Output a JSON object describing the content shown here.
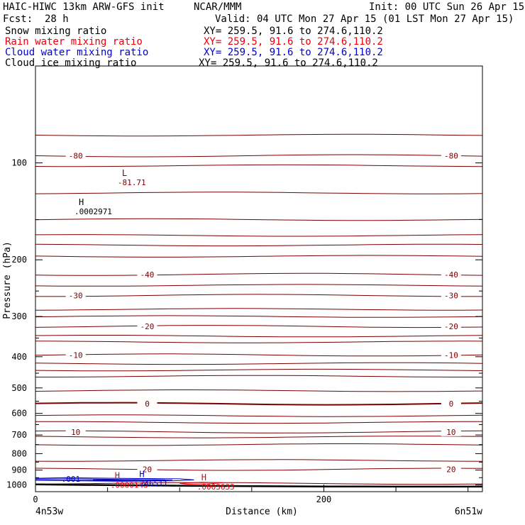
{
  "header": {
    "title": "HAIC-HIWC 13km ARW-GFS init",
    "org": "NCAR/MMM",
    "init": "Init: 00 UTC Sun 26 Apr 15",
    "fcst_label": "Fcst:",
    "fcst_value": "28 h",
    "valid": "Valid: 04 UTC Mon 27 Apr 15 (01 LST Mon 27 Apr 15)"
  },
  "fields": [
    {
      "name": "Snow mixing ratio",
      "xy": "XY= 259.5, 91.6 to 274.6,110.2",
      "color": "#000000"
    },
    {
      "name": "Rain water mixing ratio",
      "xy": "XY= 259.5, 91.6 to 274.6,110.2",
      "color": "#e8000b"
    },
    {
      "name": "Cloud water mixing ratio",
      "xy": "XY= 259.5, 91.6 to 274.6,110.2",
      "color": "#0000c8"
    },
    {
      "name": "Cloud ice mixing ratio",
      "xy": "XY= 259.5, 91.6 to 274.6,110.2",
      "color": "#000000"
    }
  ],
  "chart_data": {
    "type": "line",
    "xlabel": "Distance (km)",
    "ylabel": "Pressure (hPa)",
    "xlim": [
      0,
      310
    ],
    "ylim": [
      1050,
      50
    ],
    "y_scale": "log",
    "x_ticks": [
      0,
      200
    ],
    "x_minor_ticks": [
      50,
      100,
      150,
      250,
      300
    ],
    "y_ticks": [
      100,
      200,
      300,
      400,
      500,
      600,
      700,
      800,
      900,
      1000
    ],
    "x_end_labels": {
      "left": "4n53w",
      "right": "6n51w"
    },
    "temperature_color": "#7a0000",
    "temperature_isotherms": [
      {
        "label": "-80",
        "pressure": 95
      },
      {
        "label": "-40",
        "pressure": 222
      },
      {
        "label": "-30",
        "pressure": 258
      },
      {
        "label": "-20",
        "pressure": 322
      },
      {
        "label": "-10",
        "pressure": 395
      },
      {
        "label": "0",
        "pressure": 560,
        "bold": true
      },
      {
        "label": "10",
        "pressure": 685
      },
      {
        "label": "20",
        "pressure": 895
      }
    ],
    "extrema": [
      {
        "kind": "L",
        "value": "-81.71",
        "x": 60,
        "pressure": 112,
        "color": "#7a0000"
      },
      {
        "kind": "H",
        "value": ".0002971",
        "x": 30,
        "pressure": 138,
        "color": "#000000"
      },
      {
        "kind": "H",
        "value": ".0000145",
        "x": 55,
        "pressure": 975,
        "color": "#e8000b"
      },
      {
        "kind": "H",
        "value": ".246511",
        "x": 72,
        "pressure": 965,
        "color": "#0000c8"
      },
      {
        "kind": "H",
        "value": ".0003633",
        "x": 115,
        "pressure": 988,
        "color": "#e8000b"
      }
    ],
    "cloud_water_contour_label": ".001",
    "surface_pressure": {
      "x": [
        0,
        50,
        100,
        150,
        200,
        250,
        310
      ],
      "p": [
        997,
        1002,
        1006,
        1010,
        1012,
        1013,
        1013
      ]
    }
  }
}
